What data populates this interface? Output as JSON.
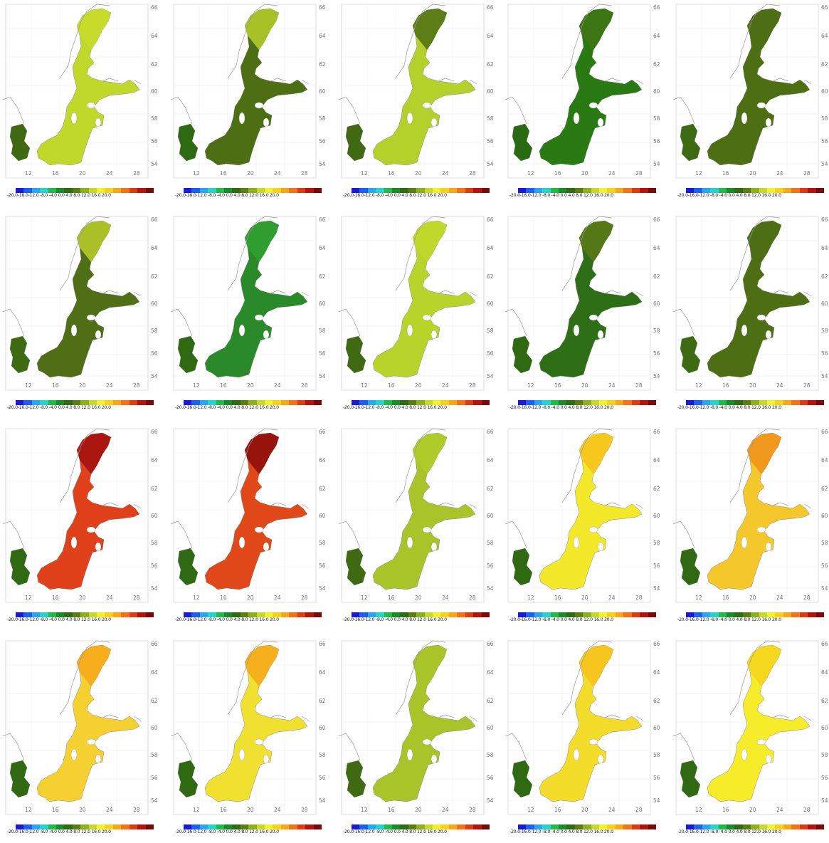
{
  "colorbar": {
    "labels": [
      "-20.0",
      "-16.0",
      "-12.0",
      "-8.0",
      "-4.0",
      "0.0",
      "4.0",
      "8.0",
      "12.0",
      "16.0",
      "20.0"
    ],
    "colors": [
      "#1a1ad6",
      "#1e5ef0",
      "#2aa6f0",
      "#29d2c8",
      "#22b84a",
      "#1a8a2a",
      "#2e6b12",
      "#5c7d12",
      "#8eb01c",
      "#c6d82a",
      "#f2f22a",
      "#f7d21c",
      "#f7a81a",
      "#f27318",
      "#dc3c14",
      "#b4140e",
      "#7a0a08"
    ]
  },
  "map": {
    "lat_ticks": [
      "54",
      "56",
      "58",
      "60",
      "62",
      "64",
      "66"
    ],
    "lon_ticks": [
      "12",
      "16",
      "20",
      "24",
      "28"
    ]
  },
  "panels": [
    {
      "fill": "#c0d82a",
      "denmark": "#3f6a12",
      "north": "#c8dc2c"
    },
    {
      "fill": "#4e6e14",
      "denmark": "#2f6a12",
      "north": "#b8d02a"
    },
    {
      "fill": "#b4d02a",
      "denmark": "#3f6a12",
      "north": "#4e6e14"
    },
    {
      "fill": "#2a7a14",
      "denmark": "#2a6a12",
      "north": "#3e7414"
    },
    {
      "fill": "#4e6e14",
      "denmark": "#3e6a12",
      "north": "#4e6e14"
    },
    {
      "fill": "#506e16",
      "denmark": "#3e6a12",
      "north": "#b8d02a"
    },
    {
      "fill": "#2a8a2a",
      "denmark": "#2f6a12",
      "north": "#30a030"
    },
    {
      "fill": "#b8d42a",
      "denmark": "#3f6a12",
      "north": "#c0d82a"
    },
    {
      "fill": "#2e6e16",
      "denmark": "#2f6a12",
      "north": "#5a7a16"
    },
    {
      "fill": "#4e6e14",
      "denmark": "#3e6a12",
      "north": "#4e6e14"
    },
    {
      "fill": "#e0401a",
      "denmark": "#2f6a12",
      "north": "#a01010"
    },
    {
      "fill": "#e0481a",
      "denmark": "#2f6a12",
      "north": "#8a0c0a"
    },
    {
      "fill": "#a8c428",
      "denmark": "#3f6a12",
      "north": "#b0cc2a"
    },
    {
      "fill": "#f4e82a",
      "denmark": "#2f6a12",
      "north": "#f6c21c"
    },
    {
      "fill": "#f4c82a",
      "denmark": "#2f6a12",
      "north": "#f0901a"
    },
    {
      "fill": "#f4d030",
      "denmark": "#2f6a12",
      "north": "#f6a81a"
    },
    {
      "fill": "#f0e030",
      "denmark": "#2f6a12",
      "north": "#f6a81a"
    },
    {
      "fill": "#a8c428",
      "denmark": "#3f6a12",
      "north": "#a8c428"
    },
    {
      "fill": "#f4dc2a",
      "denmark": "#2f6a12",
      "north": "#f6c21c"
    },
    {
      "fill": "#f6ec2a",
      "denmark": "#2f6a12",
      "north": "#f4d41c"
    }
  ]
}
